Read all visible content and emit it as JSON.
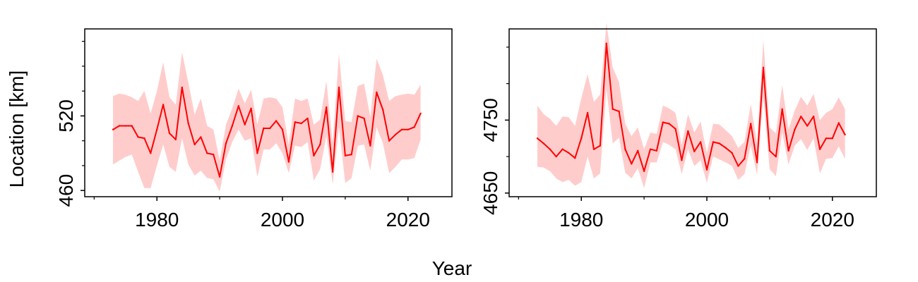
{
  "colors": {
    "line": "#ff0000",
    "band": "#ffcccc",
    "axis": "#000000"
  },
  "figure": {
    "xlabel": "Year",
    "ylabel": "Location [km]"
  },
  "chart_data": [
    {
      "type": "line",
      "title": "",
      "xlabel": "Year",
      "ylabel": "Location [km]",
      "xlim": [
        1968.5,
        2027
      ],
      "ylim": [
        455,
        590
      ],
      "xticks": [
        1980,
        2000,
        2020
      ],
      "xticks_minor": [
        1970,
        1990,
        2010
      ],
      "yticks": [
        460,
        520
      ],
      "yticks_minor": [
        480,
        500,
        540,
        560,
        580
      ],
      "grid": false,
      "x": [
        1973,
        1974,
        1975,
        1976,
        1977,
        1978,
        1979,
        1980,
        1981,
        1982,
        1983,
        1984,
        1985,
        1986,
        1987,
        1988,
        1989,
        1990,
        1991,
        1992,
        1993,
        1994,
        1995,
        1996,
        1997,
        1998,
        1999,
        2000,
        2001,
        2002,
        2003,
        2004,
        2005,
        2006,
        2007,
        2008,
        2009,
        2010,
        2011,
        2012,
        2013,
        2014,
        2015,
        2016,
        2017,
        2018,
        2019,
        2020,
        2021,
        2022
      ],
      "series": [
        {
          "values": [
            509,
            512,
            512,
            512,
            503,
            502,
            490,
            509,
            529,
            506,
            501,
            543,
            514,
            497,
            503,
            490,
            489,
            471,
            498,
            512,
            528,
            513,
            526,
            490,
            510,
            510,
            516,
            509,
            483,
            515,
            514,
            518,
            488,
            497,
            527,
            475,
            543,
            488,
            489,
            520,
            518,
            496,
            539,
            525,
            500,
            505,
            509,
            509,
            511,
            522
          ],
          "lower": [
            481,
            484,
            487,
            489,
            475,
            462,
            462,
            480,
            497,
            479,
            475,
            502,
            481,
            472,
            476,
            470,
            469,
            459,
            485,
            499,
            509,
            500,
            502,
            471,
            493,
            493,
            498,
            490,
            474,
            496,
            495,
            499,
            468,
            477,
            504,
            465,
            511,
            466,
            470,
            496,
            497,
            476,
            511,
            498,
            474,
            479,
            485,
            485,
            486,
            501
          ],
          "upper": [
            536,
            538,
            537,
            535,
            532,
            540,
            522,
            540,
            563,
            535,
            529,
            571,
            547,
            521,
            534,
            512,
            509,
            484,
            513,
            526,
            542,
            530,
            541,
            513,
            534,
            535,
            534,
            527,
            497,
            534,
            532,
            534,
            513,
            517,
            548,
            498,
            570,
            516,
            515,
            544,
            546,
            519,
            566,
            553,
            532,
            536,
            537,
            538,
            537,
            545
          ]
        }
      ]
    },
    {
      "type": "line",
      "title": "",
      "xlabel": "Year",
      "ylabel": "",
      "xlim": [
        1968.5,
        2027
      ],
      "ylim": [
        4645,
        4875
      ],
      "xticks": [
        1980,
        2000,
        2020
      ],
      "xticks_minor": [
        1970,
        1990,
        2010
      ],
      "yticks": [
        4650,
        4750
      ],
      "yticks_minor": [
        4700,
        4800,
        4850
      ],
      "grid": false,
      "x": [
        1973,
        1974,
        1975,
        1976,
        1977,
        1978,
        1979,
        1980,
        1981,
        1982,
        1983,
        1984,
        1985,
        1986,
        1987,
        1988,
        1989,
        1990,
        1991,
        1992,
        1993,
        1994,
        1995,
        1996,
        1997,
        1998,
        1999,
        2000,
        2001,
        2002,
        2003,
        2004,
        2005,
        2006,
        2007,
        2008,
        2009,
        2010,
        2011,
        2012,
        2013,
        2014,
        2015,
        2016,
        2017,
        2018,
        2019,
        2020,
        2021,
        2022
      ],
      "series": [
        {
          "values": [
            4725,
            4718,
            4710,
            4700,
            4710,
            4705,
            4698,
            4725,
            4760,
            4710,
            4715,
            4855,
            4765,
            4762,
            4710,
            4690,
            4708,
            4680,
            4710,
            4708,
            4747,
            4745,
            4738,
            4695,
            4735,
            4707,
            4720,
            4682,
            4720,
            4718,
            4712,
            4705,
            4687,
            4697,
            4745,
            4692,
            4822,
            4708,
            4700,
            4765,
            4708,
            4737,
            4755,
            4742,
            4755,
            4710,
            4725,
            4725,
            4746,
            4730
          ],
          "lower": [
            4686,
            4685,
            4680,
            4670,
            4665,
            4668,
            4660,
            4665,
            4700,
            4670,
            4677,
            4793,
            4718,
            4726,
            4678,
            4670,
            4684,
            4657,
            4692,
            4692,
            4720,
            4716,
            4710,
            4676,
            4710,
            4687,
            4695,
            4664,
            4700,
            4696,
            4692,
            4687,
            4668,
            4676,
            4715,
            4675,
            4782,
            4683,
            4673,
            4733,
            4689,
            4715,
            4724,
            4709,
            4725,
            4677,
            4697,
            4698,
            4714,
            4697
          ],
          "upper": [
            4770,
            4758,
            4752,
            4742,
            4755,
            4754,
            4742,
            4780,
            4813,
            4775,
            4785,
            4883,
            4822,
            4802,
            4745,
            4728,
            4740,
            4710,
            4733,
            4731,
            4770,
            4766,
            4760,
            4716,
            4758,
            4733,
            4748,
            4705,
            4745,
            4744,
            4736,
            4728,
            4712,
            4720,
            4772,
            4718,
            4860,
            4740,
            4732,
            4798,
            4737,
            4763,
            4782,
            4770,
            4786,
            4750,
            4760,
            4765,
            4781,
            4765
          ]
        }
      ]
    }
  ]
}
